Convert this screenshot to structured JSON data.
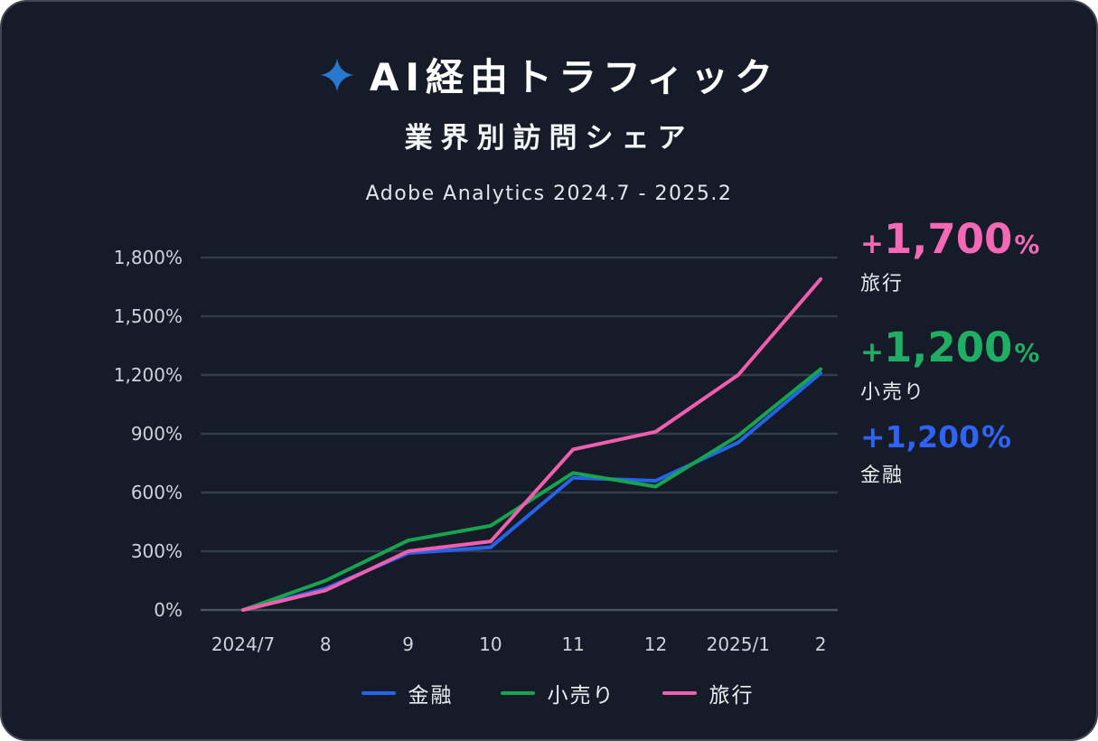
{
  "header": {
    "title": "AI経由トラフィック",
    "subtitle": "業界別訪問シェア",
    "source": "Adobe Analytics 2024.7 - 2025.2",
    "star_color": "#2878cf"
  },
  "chart_data": {
    "type": "line",
    "categories": [
      "2024/7",
      "8",
      "9",
      "10",
      "11",
      "12",
      "2025/1",
      "2"
    ],
    "series": [
      {
        "name": "金融",
        "color": "#2563eb",
        "values": [
          0,
          110,
          290,
          320,
          675,
          660,
          855,
          1210
        ]
      },
      {
        "name": "小売り",
        "color": "#18a44f",
        "values": [
          0,
          150,
          355,
          430,
          700,
          630,
          890,
          1230
        ]
      },
      {
        "name": "旅行",
        "color": "#f05fae",
        "values": [
          0,
          100,
          300,
          350,
          820,
          910,
          1200,
          1690
        ]
      }
    ],
    "title": "AI経由トラフィック 業界別訪問シェア",
    "xlabel": "",
    "ylabel": "",
    "ylim": [
      0,
      1800
    ],
    "ytick_step": 300,
    "ytick_labels": [
      "0%",
      "300%",
      "600%",
      "900%",
      "1,200%",
      "1,500%",
      "1,800%"
    ],
    "grid": "horizontal",
    "legend_position": "bottom"
  },
  "annotations": [
    {
      "plus": "+",
      "value": "1,700",
      "unit": "%",
      "label": "旅行",
      "color": "#f468b5"
    },
    {
      "plus": "+",
      "value": "1,200",
      "unit": "%",
      "label": "小売り",
      "color": "#1fae63"
    },
    {
      "plus": "+",
      "value": "1,200",
      "unit": "%",
      "label": "金融",
      "color": "#2e63f6"
    }
  ],
  "legend": {
    "items": [
      {
        "label": "金融",
        "color": "#2563eb"
      },
      {
        "label": "小売り",
        "color": "#18a44f"
      },
      {
        "label": "旅行",
        "color": "#f05fae"
      }
    ]
  },
  "colors": {
    "background": "#151b28",
    "border": "#3f4552",
    "grid": "#343b49",
    "axis": "#4b5260",
    "text": "#ffffff",
    "muted": "#ced3d9"
  }
}
